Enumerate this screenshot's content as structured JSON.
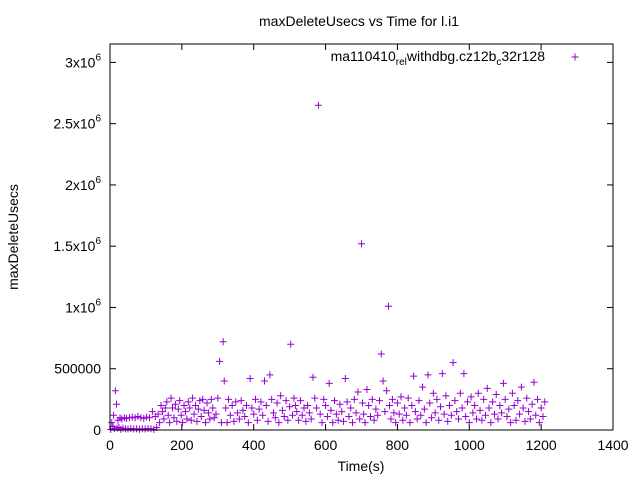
{
  "chart_data": {
    "type": "scatter",
    "title": "maxDeleteUsecs vs Time for l.i1",
    "xlabel": "Time(s)",
    "ylabel": "maxDeleteUsecs",
    "xlim": [
      0,
      1400
    ],
    "ylim": [
      0,
      3150000
    ],
    "x_ticks": [
      0,
      200,
      400,
      600,
      800,
      1000,
      1200,
      1400
    ],
    "x_tick_labels": [
      "0",
      "200",
      "400",
      "600",
      "800",
      "1000",
      "1200",
      "1400"
    ],
    "y_ticks": [
      0,
      500000,
      1000000,
      1500000,
      2000000,
      2500000,
      3000000
    ],
    "y_tick_labels": [
      {
        "base": "0",
        "exp": ""
      },
      {
        "base": "500000",
        "exp": ""
      },
      {
        "base": "1x10",
        "exp": "6"
      },
      {
        "base": "1.5x10",
        "exp": "6"
      },
      {
        "base": "2x10",
        "exp": "6"
      },
      {
        "base": "2.5x10",
        "exp": "6"
      },
      {
        "base": "3x10",
        "exp": "6"
      }
    ],
    "legend_position": "top-right",
    "series": [
      {
        "name": "ma110410_rel_withdbg.cz12b_c32r128",
        "legend_parts": [
          {
            "text": "ma110410",
            "sub": false
          },
          {
            "text": "rel",
            "sub": true
          },
          {
            "text": "w",
            "sub": false
          },
          {
            "text": "ithdbg.cz12b",
            "sub": false
          },
          {
            "text": "c",
            "sub": true
          },
          {
            "text": "32r128",
            "sub": false
          }
        ],
        "color": "#9400d3",
        "marker": "+",
        "points": [
          [
            2,
            5000
          ],
          [
            5,
            60000
          ],
          [
            8,
            30000
          ],
          [
            10,
            120000
          ],
          [
            12,
            10000
          ],
          [
            15,
            320000
          ],
          [
            18,
            210000
          ],
          [
            20,
            15000
          ],
          [
            22,
            80000
          ],
          [
            25,
            20000
          ],
          [
            28,
            100000
          ],
          [
            30,
            5000
          ],
          [
            33,
            90000
          ],
          [
            36,
            15000
          ],
          [
            40,
            100000
          ],
          [
            43,
            10000
          ],
          [
            46,
            95000
          ],
          [
            50,
            8000
          ],
          [
            54,
            100000
          ],
          [
            58,
            12000
          ],
          [
            62,
            105000
          ],
          [
            66,
            8000
          ],
          [
            70,
            100000
          ],
          [
            74,
            10000
          ],
          [
            78,
            110000
          ],
          [
            82,
            5000
          ],
          [
            86,
            100000
          ],
          [
            90,
            10000
          ],
          [
            94,
            95000
          ],
          [
            98,
            8000
          ],
          [
            102,
            105000
          ],
          [
            106,
            12000
          ],
          [
            110,
            100000
          ],
          [
            114,
            10000
          ],
          [
            118,
            150000
          ],
          [
            122,
            5000
          ],
          [
            126,
            110000
          ],
          [
            130,
            20000
          ],
          [
            134,
            130000
          ],
          [
            138,
            60000
          ],
          [
            142,
            200000
          ],
          [
            146,
            150000
          ],
          [
            150,
            90000
          ],
          [
            154,
            180000
          ],
          [
            158,
            230000
          ],
          [
            162,
            120000
          ],
          [
            166,
            60000
          ],
          [
            170,
            260000
          ],
          [
            174,
            180000
          ],
          [
            178,
            100000
          ],
          [
            182,
            210000
          ],
          [
            186,
            70000
          ],
          [
            190,
            170000
          ],
          [
            194,
            240000
          ],
          [
            198,
            120000
          ],
          [
            202,
            60000
          ],
          [
            206,
            200000
          ],
          [
            210,
            150000
          ],
          [
            214,
            90000
          ],
          [
            218,
            230000
          ],
          [
            222,
            180000
          ],
          [
            226,
            80000
          ],
          [
            230,
            260000
          ],
          [
            234,
            130000
          ],
          [
            238,
            200000
          ],
          [
            242,
            70000
          ],
          [
            246,
            170000
          ],
          [
            250,
            240000
          ],
          [
            254,
            110000
          ],
          [
            258,
            250000
          ],
          [
            262,
            160000
          ],
          [
            266,
            60000
          ],
          [
            270,
            220000
          ],
          [
            274,
            140000
          ],
          [
            278,
            90000
          ],
          [
            282,
            250000
          ],
          [
            286,
            180000
          ],
          [
            290,
            100000
          ],
          [
            295,
            130000
          ],
          [
            300,
            260000
          ],
          [
            305,
            560000
          ],
          [
            310,
            60000
          ],
          [
            315,
            720000
          ],
          [
            318,
            400000
          ],
          [
            322,
            180000
          ],
          [
            326,
            60000
          ],
          [
            330,
            250000
          ],
          [
            335,
            120000
          ],
          [
            340,
            200000
          ],
          [
            345,
            70000
          ],
          [
            350,
            230000
          ],
          [
            355,
            140000
          ],
          [
            360,
            90000
          ],
          [
            365,
            240000
          ],
          [
            370,
            160000
          ],
          [
            375,
            110000
          ],
          [
            380,
            200000
          ],
          [
            385,
            60000
          ],
          [
            390,
            420000
          ],
          [
            395,
            180000
          ],
          [
            400,
            130000
          ],
          [
            405,
            250000
          ],
          [
            410,
            80000
          ],
          [
            415,
            170000
          ],
          [
            420,
            230000
          ],
          [
            425,
            120000
          ],
          [
            430,
            400000
          ],
          [
            435,
            200000
          ],
          [
            440,
            70000
          ],
          [
            445,
            450000
          ],
          [
            450,
            250000
          ],
          [
            455,
            140000
          ],
          [
            460,
            100000
          ],
          [
            465,
            220000
          ],
          [
            470,
            60000
          ],
          [
            475,
            280000
          ],
          [
            480,
            160000
          ],
          [
            485,
            110000
          ],
          [
            490,
            240000
          ],
          [
            495,
            80000
          ],
          [
            500,
            190000
          ],
          [
            503,
            700000
          ],
          [
            508,
            120000
          ],
          [
            512,
            260000
          ],
          [
            516,
            200000
          ],
          [
            520,
            150000
          ],
          [
            525,
            80000
          ],
          [
            530,
            240000
          ],
          [
            535,
            120000
          ],
          [
            540,
            180000
          ],
          [
            545,
            70000
          ],
          [
            550,
            200000
          ],
          [
            555,
            140000
          ],
          [
            560,
            90000
          ],
          [
            565,
            430000
          ],
          [
            570,
            260000
          ],
          [
            575,
            180000
          ],
          [
            580,
            2650000
          ],
          [
            585,
            130000
          ],
          [
            590,
            60000
          ],
          [
            595,
            250000
          ],
          [
            600,
            200000
          ],
          [
            605,
            110000
          ],
          [
            610,
            380000
          ],
          [
            615,
            160000
          ],
          [
            620,
            60000
          ],
          [
            625,
            240000
          ],
          [
            630,
            130000
          ],
          [
            635,
            80000
          ],
          [
            640,
            210000
          ],
          [
            645,
            150000
          ],
          [
            650,
            70000
          ],
          [
            655,
            420000
          ],
          [
            660,
            230000
          ],
          [
            665,
            110000
          ],
          [
            670,
            180000
          ],
          [
            675,
            60000
          ],
          [
            680,
            250000
          ],
          [
            685,
            140000
          ],
          [
            690,
            310000
          ],
          [
            695,
            90000
          ],
          [
            700,
            1520000
          ],
          [
            703,
            220000
          ],
          [
            706,
            130000
          ],
          [
            710,
            60000
          ],
          [
            715,
            330000
          ],
          [
            720,
            200000
          ],
          [
            725,
            110000
          ],
          [
            730,
            250000
          ],
          [
            735,
            80000
          ],
          [
            740,
            170000
          ],
          [
            745,
            120000
          ],
          [
            750,
            240000
          ],
          [
            755,
            620000
          ],
          [
            760,
            400000
          ],
          [
            765,
            150000
          ],
          [
            770,
            320000
          ],
          [
            775,
            1010000
          ],
          [
            778,
            200000
          ],
          [
            782,
            90000
          ],
          [
            786,
            250000
          ],
          [
            790,
            140000
          ],
          [
            795,
            60000
          ],
          [
            800,
            220000
          ],
          [
            805,
            130000
          ],
          [
            810,
            270000
          ],
          [
            815,
            80000
          ],
          [
            820,
            180000
          ],
          [
            825,
            120000
          ],
          [
            830,
            260000
          ],
          [
            835,
            60000
          ],
          [
            840,
            200000
          ],
          [
            845,
            440000
          ],
          [
            850,
            150000
          ],
          [
            855,
            90000
          ],
          [
            860,
            240000
          ],
          [
            865,
            120000
          ],
          [
            870,
            350000
          ],
          [
            875,
            170000
          ],
          [
            880,
            60000
          ],
          [
            885,
            450000
          ],
          [
            890,
            220000
          ],
          [
            895,
            100000
          ],
          [
            900,
            300000
          ],
          [
            905,
            140000
          ],
          [
            910,
            250000
          ],
          [
            915,
            80000
          ],
          [
            920,
            190000
          ],
          [
            925,
            460000
          ],
          [
            930,
            130000
          ],
          [
            935,
            280000
          ],
          [
            940,
            70000
          ],
          [
            945,
            200000
          ],
          [
            950,
            120000
          ],
          [
            955,
            550000
          ],
          [
            960,
            240000
          ],
          [
            965,
            150000
          ],
          [
            970,
            90000
          ],
          [
            975,
            300000
          ],
          [
            980,
            180000
          ],
          [
            985,
            460000
          ],
          [
            990,
            110000
          ],
          [
            995,
            230000
          ],
          [
            1000,
            60000
          ],
          [
            1005,
            270000
          ],
          [
            1010,
            140000
          ],
          [
            1015,
            200000
          ],
          [
            1020,
            90000
          ],
          [
            1025,
            300000
          ],
          [
            1030,
            160000
          ],
          [
            1035,
            80000
          ],
          [
            1040,
            250000
          ],
          [
            1045,
            120000
          ],
          [
            1050,
            340000
          ],
          [
            1055,
            180000
          ],
          [
            1060,
            60000
          ],
          [
            1065,
            230000
          ],
          [
            1070,
            130000
          ],
          [
            1075,
            290000
          ],
          [
            1080,
            90000
          ],
          [
            1085,
            200000
          ],
          [
            1090,
            140000
          ],
          [
            1095,
            380000
          ],
          [
            1100,
            250000
          ],
          [
            1105,
            110000
          ],
          [
            1110,
            170000
          ],
          [
            1115,
            60000
          ],
          [
            1120,
            300000
          ],
          [
            1125,
            200000
          ],
          [
            1130,
            80000
          ],
          [
            1135,
            240000
          ],
          [
            1140,
            130000
          ],
          [
            1145,
            350000
          ],
          [
            1150,
            180000
          ],
          [
            1155,
            70000
          ],
          [
            1160,
            260000
          ],
          [
            1165,
            150000
          ],
          [
            1170,
            90000
          ],
          [
            1175,
            210000
          ],
          [
            1180,
            390000
          ],
          [
            1185,
            120000
          ],
          [
            1190,
            250000
          ],
          [
            1195,
            60000
          ],
          [
            1200,
            180000
          ],
          [
            1205,
            110000
          ],
          [
            1210,
            230000
          ]
        ]
      }
    ]
  }
}
